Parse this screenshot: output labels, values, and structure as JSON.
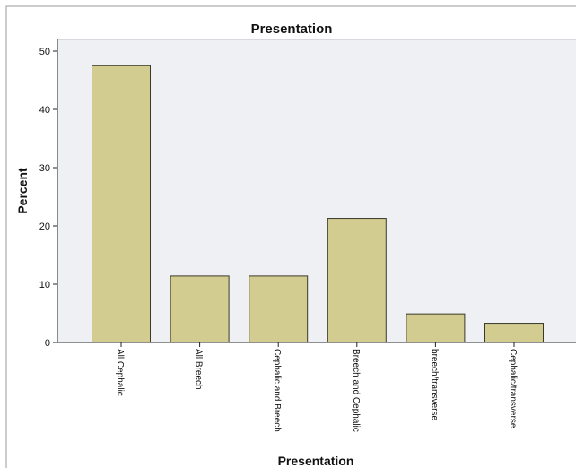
{
  "chart_data": {
    "type": "bar",
    "title": "Presentation",
    "xlabel": "Presentation",
    "ylabel": "Percent",
    "categories": [
      "All Cephalic",
      "All Breech",
      "Cephalic and Breech",
      "Breech and Cephalic",
      "breech/transverse",
      "Cephalic/transverse"
    ],
    "values": [
      47.5,
      11.4,
      11.4,
      21.3,
      4.9,
      3.3
    ],
    "ylim": [
      0,
      52
    ],
    "yticks": [
      0,
      10,
      20,
      30,
      40,
      50
    ],
    "grid": false,
    "legend": "none",
    "colors": {
      "bar_fill": "#d2cc91",
      "bar_stroke": "#3a3a2a",
      "plot_background": "#eef0f4",
      "axis": "#222222"
    }
  }
}
